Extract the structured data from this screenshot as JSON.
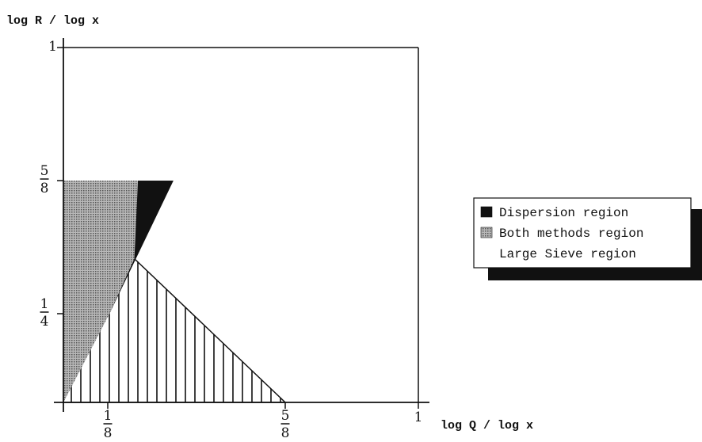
{
  "chart_data": {
    "type": "area",
    "xlabel": "log Q / log x",
    "ylabel": "log R / log x",
    "xlim": [
      0,
      1
    ],
    "ylim": [
      0,
      1
    ],
    "x_ticks": [
      {
        "value": 0.125,
        "numerator": "1",
        "denominator": "8"
      },
      {
        "value": 0.625,
        "numerator": "5",
        "denominator": "8"
      },
      {
        "value": 1,
        "numerator": "1",
        "denominator": ""
      }
    ],
    "y_ticks": [
      {
        "value": 0.25,
        "numerator": "1",
        "denominator": "4"
      },
      {
        "value": 0.625,
        "numerator": "5",
        "denominator": "8"
      },
      {
        "value": 1,
        "numerator": "1",
        "denominator": ""
      }
    ],
    "regions": [
      {
        "name": "Large Sieve region",
        "fill": "vertical-hatch",
        "polygon": [
          [
            0,
            0
          ],
          [
            0.625,
            0
          ],
          [
            0.2,
            0.405
          ],
          [
            0,
            0.25
          ]
        ]
      },
      {
        "name": "Dispersion region",
        "fill": "solid-black",
        "polygon": [
          [
            0,
            0.25
          ],
          [
            0.13,
            0.25
          ],
          [
            0.31,
            0.625
          ],
          [
            0,
            0.625
          ]
        ]
      },
      {
        "name": "Both methods region",
        "fill": "gray-dots",
        "polygon": [
          [
            0,
            0
          ],
          [
            0.13,
            0.25
          ],
          [
            0.2,
            0.405
          ],
          [
            0.21,
            0.625
          ],
          [
            0,
            0.625
          ]
        ]
      }
    ],
    "legend": {
      "position": "right",
      "entries": [
        {
          "label": "Dispersion region",
          "swatch": "solid-black"
        },
        {
          "label": "Both methods region",
          "swatch": "gray-dots"
        },
        {
          "label": "Large Sieve region",
          "swatch": "none"
        }
      ]
    },
    "colors": {
      "black": "#111111",
      "gray": "#9a9a9a",
      "background": "#ffffff"
    }
  }
}
